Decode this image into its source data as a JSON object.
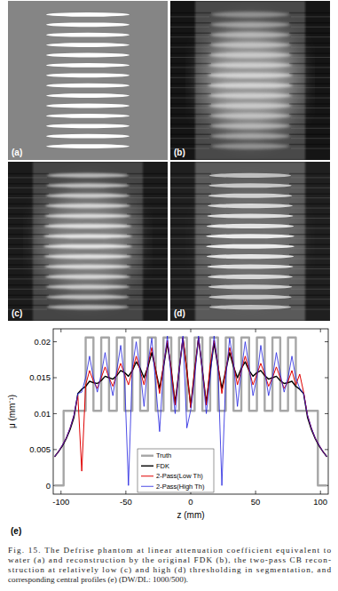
{
  "figure": {
    "panel_labels": [
      "(a)",
      "(b)",
      "(c)",
      "(d)"
    ],
    "caption": [
      "Fig. 15. The Defrise phantom at linear attenuation coefficient equivalent to",
      "water (a) and reconstruction by the original FDK (b), the two-pass CB recon-",
      "struction at relatively low (c) and high (d) thresholding in segmentation, and",
      "corresponding central profiles (e) (DW/DL: 1000/500)."
    ]
  },
  "chart_data": {
    "type": "line",
    "annotation": "(e)",
    "xlabel": "z (mm)",
    "ylabel": "μ (mm⁻¹)",
    "xlim": [
      -106,
      106
    ],
    "ylim": [
      -0.0012,
      0.0218
    ],
    "xticks": [
      -100,
      -50,
      0,
      50,
      100
    ],
    "yticks": [
      0,
      0.005,
      0.01,
      0.015,
      0.02
    ],
    "legend": "bottom",
    "series": [
      {
        "name": "Truth",
        "color": "#a6a6a6",
        "x": [
          -105,
          -98,
          -98,
          -81,
          -81,
          -75,
          -75,
          -69,
          -69,
          -63,
          -63,
          -57,
          -57,
          -51,
          -51,
          -45,
          -45,
          -39,
          -39,
          -33,
          -33,
          -27,
          -27,
          -21,
          -21,
          -15,
          -15,
          -9,
          -9,
          -3,
          -3,
          3,
          3,
          9,
          9,
          15,
          15,
          21,
          21,
          27,
          27,
          33,
          33,
          39,
          39,
          45,
          45,
          51,
          51,
          57,
          57,
          63,
          63,
          69,
          69,
          75,
          75,
          81,
          81,
          98,
          98,
          105
        ],
        "values": [
          0,
          0,
          0.0104,
          0.0104,
          0.0206,
          0.0206,
          0.0104,
          0.0104,
          0.0206,
          0.0206,
          0.0104,
          0.0104,
          0.0206,
          0.0206,
          0.0104,
          0.0104,
          0.0206,
          0.0206,
          0.0104,
          0.0104,
          0.0206,
          0.0206,
          0.0104,
          0.0104,
          0.0206,
          0.0206,
          0.0104,
          0.0104,
          0.0206,
          0.0206,
          0.0104,
          0.0104,
          0.0206,
          0.0206,
          0.0104,
          0.0104,
          0.0206,
          0.0206,
          0.0104,
          0.0104,
          0.0206,
          0.0206,
          0.0104,
          0.0104,
          0.0206,
          0.0206,
          0.0104,
          0.0104,
          0.0206,
          0.0206,
          0.0104,
          0.0104,
          0.0206,
          0.0206,
          0.0104,
          0.0104,
          0.0206,
          0.0206,
          0.0104,
          0.0104,
          0,
          0
        ]
      },
      {
        "name": "FDK",
        "color": "#000000",
        "x": [
          -105,
          -102,
          -99,
          -96,
          -93,
          -90,
          -87,
          -84,
          -81,
          -78,
          -75,
          -72,
          -69,
          -66,
          -63,
          -60,
          -57,
          -54,
          -51,
          -48,
          -45,
          -42,
          -39,
          -36,
          -33,
          -30,
          -27,
          -24,
          -21,
          -18,
          -15,
          -12,
          -9,
          -6,
          -3,
          0,
          3,
          6,
          9,
          12,
          15,
          18,
          21,
          24,
          27,
          30,
          33,
          36,
          39,
          42,
          45,
          48,
          51,
          54,
          57,
          60,
          63,
          66,
          69,
          72,
          75,
          78,
          81,
          84,
          87,
          90,
          93,
          96,
          99,
          102,
          105
        ],
        "values": [
          0.004,
          0.0047,
          0.0055,
          0.0065,
          0.0078,
          0.0095,
          0.0128,
          0.0134,
          0.0138,
          0.0145,
          0.0143,
          0.0142,
          0.0146,
          0.0152,
          0.015,
          0.0148,
          0.0153,
          0.016,
          0.0157,
          0.0152,
          0.016,
          0.0172,
          0.0163,
          0.015,
          0.0165,
          0.0185,
          0.016,
          0.0135,
          0.0165,
          0.0198,
          0.016,
          0.0115,
          0.016,
          0.0205,
          0.016,
          0.011,
          0.016,
          0.0205,
          0.016,
          0.0115,
          0.016,
          0.0198,
          0.0165,
          0.0135,
          0.016,
          0.0185,
          0.0165,
          0.015,
          0.0163,
          0.0172,
          0.016,
          0.0152,
          0.0157,
          0.016,
          0.0153,
          0.0148,
          0.015,
          0.0152,
          0.0146,
          0.0142,
          0.0143,
          0.0145,
          0.0138,
          0.0134,
          0.0128,
          0.0095,
          0.0078,
          0.0065,
          0.0055,
          0.0047,
          0.004
        ]
      },
      {
        "name": "2-Pass(Low Th)",
        "color": "#e00000",
        "x": [
          -105,
          -102,
          -99,
          -96,
          -93,
          -90,
          -87,
          -84,
          -81,
          -78,
          -75,
          -72,
          -69,
          -66,
          -63,
          -60,
          -57,
          -54,
          -51,
          -48,
          -45,
          -42,
          -39,
          -36,
          -33,
          -30,
          -27,
          -24,
          -21,
          -18,
          -15,
          -12,
          -9,
          -6,
          -3,
          0,
          3,
          6,
          9,
          12,
          15,
          18,
          21,
          24,
          27,
          30,
          33,
          36,
          39,
          42,
          45,
          48,
          51,
          54,
          57,
          60,
          63,
          66,
          69,
          72,
          75,
          78,
          81,
          84,
          87,
          90,
          93,
          96,
          99,
          102,
          105
        ],
        "values": [
          0.004,
          0.0047,
          0.0056,
          0.0066,
          0.008,
          0.0098,
          0.0125,
          0.002,
          0.014,
          0.016,
          0.0145,
          0.0135,
          0.015,
          0.0165,
          0.015,
          0.0138,
          0.0155,
          0.017,
          0.0155,
          0.014,
          0.016,
          0.018,
          0.016,
          0.014,
          0.0168,
          0.0192,
          0.016,
          0.0128,
          0.0168,
          0.0202,
          0.016,
          0.0112,
          0.016,
          0.0206,
          0.016,
          0.0108,
          0.016,
          0.0206,
          0.016,
          0.0112,
          0.0168,
          0.0202,
          0.0168,
          0.0128,
          0.016,
          0.0192,
          0.0168,
          0.014,
          0.016,
          0.018,
          0.016,
          0.014,
          0.0155,
          0.017,
          0.0155,
          0.0138,
          0.015,
          0.0165,
          0.015,
          0.0135,
          0.0145,
          0.016,
          0.014,
          0.0155,
          0.013,
          0.0098,
          0.008,
          0.0066,
          0.0056,
          0.0047,
          0.004
        ]
      },
      {
        "name": "2-Pass(High Th)",
        "color": "#1f1fe0",
        "x": [
          -105,
          -102,
          -99,
          -96,
          -93,
          -90,
          -87,
          -84,
          -81,
          -78,
          -75,
          -72,
          -69,
          -66,
          -63,
          -60,
          -57,
          -54,
          -51,
          -48,
          -45,
          -42,
          -39,
          -36,
          -33,
          -30,
          -27,
          -24,
          -21,
          -18,
          -15,
          -12,
          -9,
          -6,
          -3,
          0,
          3,
          6,
          9,
          12,
          15,
          18,
          21,
          24,
          27,
          30,
          33,
          36,
          39,
          42,
          45,
          48,
          51,
          54,
          57,
          60,
          63,
          66,
          69,
          72,
          75,
          78,
          81,
          84,
          87,
          90,
          93,
          96,
          99,
          102,
          105
        ],
        "values": [
          0.004,
          0.0047,
          0.0056,
          0.0066,
          0.008,
          0.0098,
          0.0128,
          0.013,
          0.015,
          0.018,
          0.015,
          0.013,
          0.0155,
          0.0185,
          0.015,
          0.0125,
          0.016,
          0.0195,
          0.015,
          0.0,
          0.0165,
          0.02,
          0.016,
          0.011,
          0.017,
          0.0205,
          0.014,
          0.0075,
          0.0165,
          0.0208,
          0.015,
          0.01,
          0.016,
          0.0208,
          0.008,
          0.0105,
          0.015,
          0.0208,
          0.016,
          0.01,
          0.015,
          0.0208,
          0.0165,
          0.0,
          0.015,
          0.0205,
          0.017,
          0.011,
          0.016,
          0.02,
          0.0165,
          0.0125,
          0.015,
          0.0195,
          0.016,
          0.0125,
          0.015,
          0.0185,
          0.0155,
          0.013,
          0.015,
          0.018,
          0.015,
          0.0135,
          0.0128,
          0.0098,
          0.008,
          0.0066,
          0.0056,
          0.0047,
          0.004
        ]
      }
    ]
  }
}
